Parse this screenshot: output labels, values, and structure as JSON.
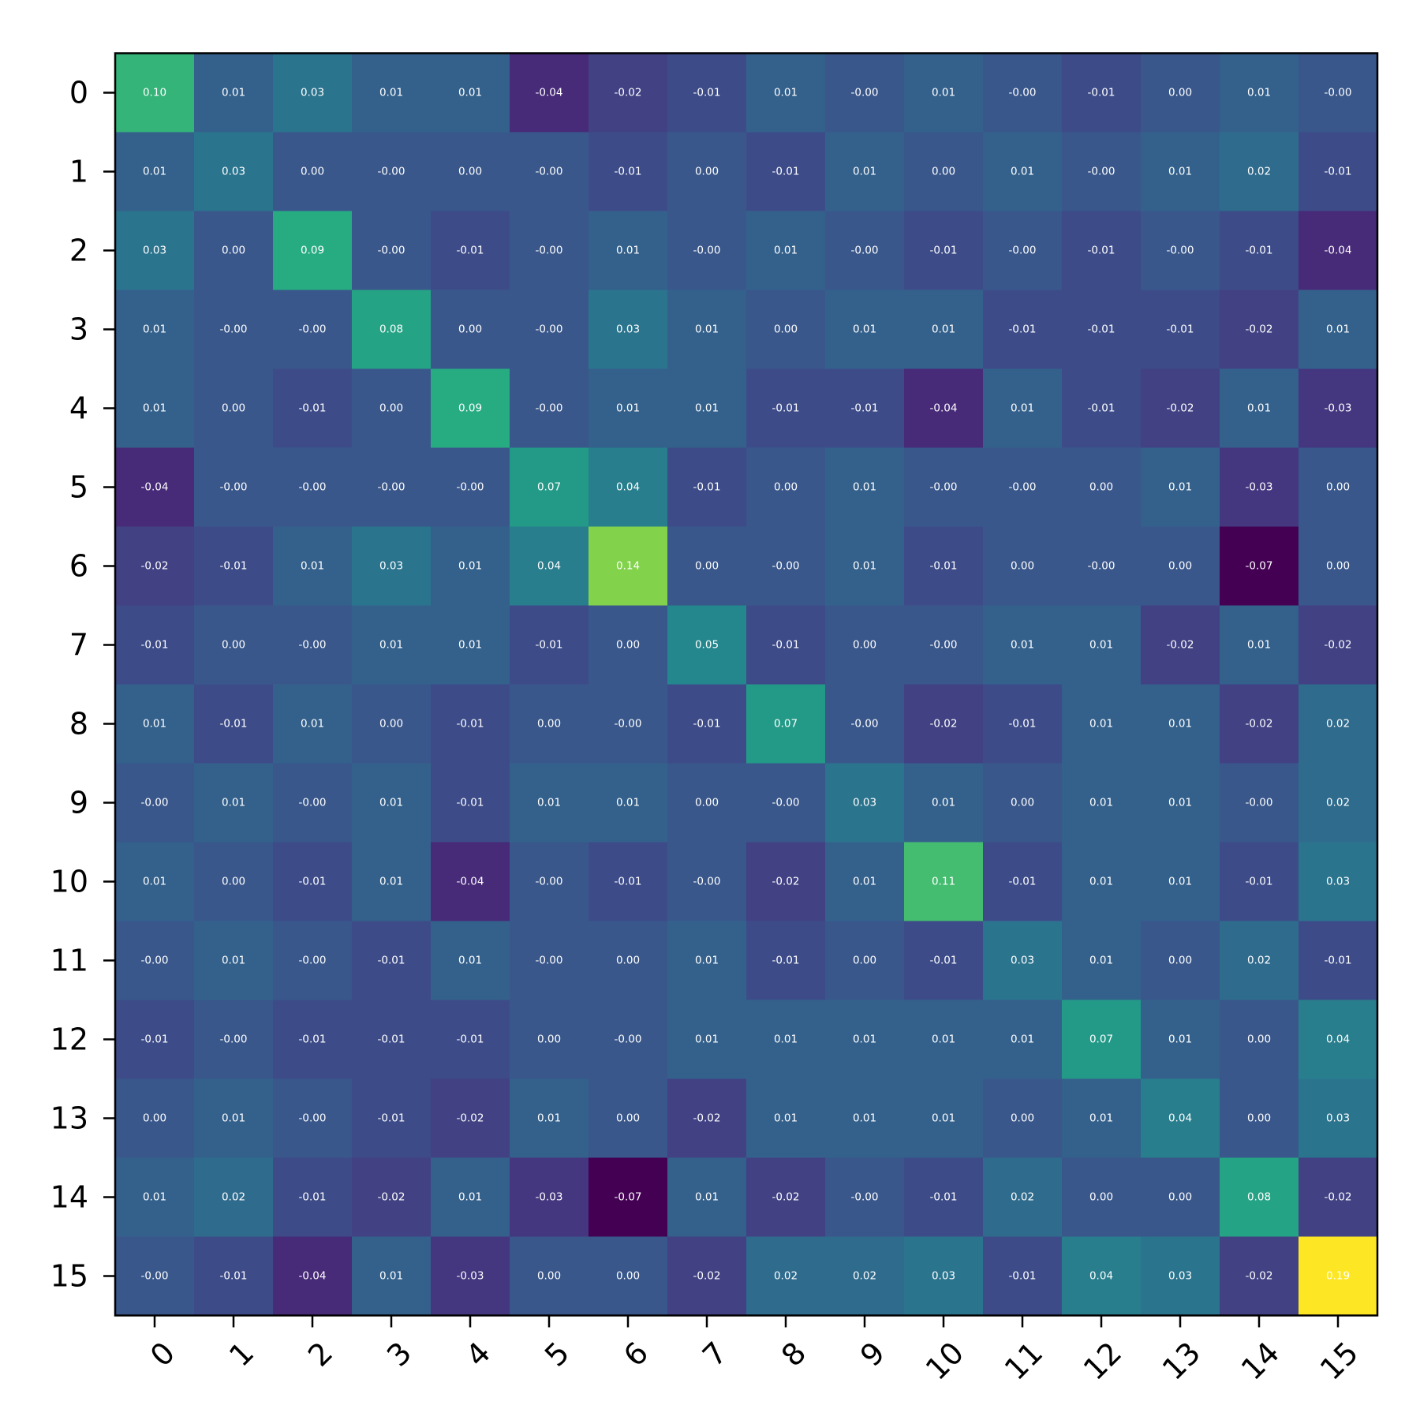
{
  "chart_data": {
    "type": "heatmap",
    "title": "",
    "xlabel": "",
    "ylabel": "",
    "colormap": "viridis",
    "vmin": -0.07,
    "vmax": 0.19,
    "grid": false,
    "value_format": "2-decimal",
    "x_categories": [
      "0",
      "1",
      "2",
      "3",
      "4",
      "5",
      "6",
      "7",
      "8",
      "9",
      "10",
      "11",
      "12",
      "13",
      "14",
      "15"
    ],
    "y_categories": [
      "0",
      "1",
      "2",
      "3",
      "4",
      "5",
      "6",
      "7",
      "8",
      "9",
      "10",
      "11",
      "12",
      "13",
      "14",
      "15"
    ],
    "values": [
      [
        0.1,
        0.01,
        0.03,
        0.01,
        0.01,
        -0.04,
        -0.02,
        -0.01,
        0.01,
        -0.0,
        0.01,
        -0.0,
        -0.01,
        0.0,
        0.01,
        -0.0
      ],
      [
        0.01,
        0.03,
        0.0,
        -0.0,
        0.0,
        -0.0,
        -0.01,
        0.0,
        -0.01,
        0.01,
        0.0,
        0.01,
        -0.0,
        0.01,
        0.02,
        -0.01
      ],
      [
        0.03,
        0.0,
        0.09,
        -0.0,
        -0.01,
        -0.0,
        0.01,
        -0.0,
        0.01,
        -0.0,
        -0.01,
        -0.0,
        -0.01,
        -0.0,
        -0.01,
        -0.04
      ],
      [
        0.01,
        -0.0,
        -0.0,
        0.08,
        0.0,
        -0.0,
        0.03,
        0.01,
        0.0,
        0.01,
        0.01,
        -0.01,
        -0.01,
        -0.01,
        -0.02,
        0.01
      ],
      [
        0.01,
        0.0,
        -0.01,
        0.0,
        0.09,
        -0.0,
        0.01,
        0.01,
        -0.01,
        -0.01,
        -0.04,
        0.01,
        -0.01,
        -0.02,
        0.01,
        -0.03
      ],
      [
        -0.04,
        -0.0,
        -0.0,
        -0.0,
        -0.0,
        0.07,
        0.04,
        -0.01,
        0.0,
        0.01,
        -0.0,
        -0.0,
        0.0,
        0.01,
        -0.03,
        0.0
      ],
      [
        -0.02,
        -0.01,
        0.01,
        0.03,
        0.01,
        0.04,
        0.14,
        0.0,
        -0.0,
        0.01,
        -0.01,
        0.0,
        -0.0,
        0.0,
        -0.07,
        0.0
      ],
      [
        -0.01,
        0.0,
        -0.0,
        0.01,
        0.01,
        -0.01,
        0.0,
        0.05,
        -0.01,
        0.0,
        -0.0,
        0.01,
        0.01,
        -0.02,
        0.01,
        -0.02
      ],
      [
        0.01,
        -0.01,
        0.01,
        0.0,
        -0.01,
        0.0,
        -0.0,
        -0.01,
        0.07,
        -0.0,
        -0.02,
        -0.01,
        0.01,
        0.01,
        -0.02,
        0.02
      ],
      [
        -0.0,
        0.01,
        -0.0,
        0.01,
        -0.01,
        0.01,
        0.01,
        0.0,
        -0.0,
        0.03,
        0.01,
        0.0,
        0.01,
        0.01,
        -0.0,
        0.02
      ],
      [
        0.01,
        0.0,
        -0.01,
        0.01,
        -0.04,
        -0.0,
        -0.01,
        -0.0,
        -0.02,
        0.01,
        0.11,
        -0.01,
        0.01,
        0.01,
        -0.01,
        0.03
      ],
      [
        -0.0,
        0.01,
        -0.0,
        -0.01,
        0.01,
        -0.0,
        0.0,
        0.01,
        -0.01,
        0.0,
        -0.01,
        0.03,
        0.01,
        0.0,
        0.02,
        -0.01
      ],
      [
        -0.01,
        -0.0,
        -0.01,
        -0.01,
        -0.01,
        0.0,
        -0.0,
        0.01,
        0.01,
        0.01,
        0.01,
        0.01,
        0.07,
        0.01,
        0.0,
        0.04
      ],
      [
        0.0,
        0.01,
        -0.0,
        -0.01,
        -0.02,
        0.01,
        0.0,
        -0.02,
        0.01,
        0.01,
        0.01,
        0.0,
        0.01,
        0.04,
        0.0,
        0.03
      ],
      [
        0.01,
        0.02,
        -0.01,
        -0.02,
        0.01,
        -0.03,
        -0.07,
        0.01,
        -0.02,
        -0.0,
        -0.01,
        0.02,
        0.0,
        0.0,
        0.08,
        -0.02
      ],
      [
        -0.0,
        -0.01,
        -0.04,
        0.01,
        -0.03,
        0.0,
        0.0,
        -0.02,
        0.02,
        0.02,
        0.03,
        -0.01,
        0.04,
        0.03,
        -0.02,
        0.19
      ]
    ],
    "value_labels": [
      [
        "0.10",
        "0.01",
        "0.03",
        "0.01",
        "0.01",
        "-0.04",
        "-0.02",
        "-0.01",
        "0.01",
        "-0.00",
        "0.01",
        "-0.00",
        "-0.01",
        "0.00",
        "0.01",
        "-0.00"
      ],
      [
        "0.01",
        "0.03",
        "0.00",
        "-0.00",
        "0.00",
        "-0.00",
        "-0.01",
        "0.00",
        "-0.01",
        "0.01",
        "0.00",
        "0.01",
        "-0.00",
        "0.01",
        "0.02",
        "-0.01"
      ],
      [
        "0.03",
        "0.00",
        "0.09",
        "-0.00",
        "-0.01",
        "-0.00",
        "0.01",
        "-0.00",
        "0.01",
        "-0.00",
        "-0.01",
        "-0.00",
        "-0.01",
        "-0.00",
        "-0.01",
        "-0.04"
      ],
      [
        "0.01",
        "-0.00",
        "-0.00",
        "0.08",
        "0.00",
        "-0.00",
        "0.03",
        "0.01",
        "0.00",
        "0.01",
        "0.01",
        "-0.01",
        "-0.01",
        "-0.01",
        "-0.02",
        "0.01"
      ],
      [
        "0.01",
        "0.00",
        "-0.01",
        "0.00",
        "0.09",
        "-0.00",
        "0.01",
        "0.01",
        "-0.01",
        "-0.01",
        "-0.04",
        "0.01",
        "-0.01",
        "-0.02",
        "0.01",
        "-0.03"
      ],
      [
        "-0.04",
        "-0.00",
        "-0.00",
        "-0.00",
        "-0.00",
        "0.07",
        "0.04",
        "-0.01",
        "0.00",
        "0.01",
        "-0.00",
        "-0.00",
        "0.00",
        "0.01",
        "-0.03",
        "0.00"
      ],
      [
        "-0.02",
        "-0.01",
        "0.01",
        "0.03",
        "0.01",
        "0.04",
        "0.14",
        "0.00",
        "-0.00",
        "0.01",
        "-0.01",
        "0.00",
        "-0.00",
        "0.00",
        "-0.07",
        "0.00"
      ],
      [
        "-0.01",
        "0.00",
        "-0.00",
        "0.01",
        "0.01",
        "-0.01",
        "0.00",
        "0.05",
        "-0.01",
        "0.00",
        "-0.00",
        "0.01",
        "0.01",
        "-0.02",
        "0.01",
        "-0.02"
      ],
      [
        "0.01",
        "-0.01",
        "0.01",
        "0.00",
        "-0.01",
        "0.00",
        "-0.00",
        "-0.01",
        "0.07",
        "-0.00",
        "-0.02",
        "-0.01",
        "0.01",
        "0.01",
        "-0.02",
        "0.02"
      ],
      [
        "-0.00",
        "0.01",
        "-0.00",
        "0.01",
        "-0.01",
        "0.01",
        "0.01",
        "0.00",
        "-0.00",
        "0.03",
        "0.01",
        "0.00",
        "0.01",
        "0.01",
        "-0.00",
        "0.02"
      ],
      [
        "0.01",
        "0.00",
        "-0.01",
        "0.01",
        "-0.04",
        "-0.00",
        "-0.01",
        "-0.00",
        "-0.02",
        "0.01",
        "0.11",
        "-0.01",
        "0.01",
        "0.01",
        "-0.01",
        "0.03"
      ],
      [
        "-0.00",
        "0.01",
        "-0.00",
        "-0.01",
        "0.01",
        "-0.00",
        "0.00",
        "0.01",
        "-0.01",
        "0.00",
        "-0.01",
        "0.03",
        "0.01",
        "0.00",
        "0.02",
        "-0.01"
      ],
      [
        "-0.01",
        "-0.00",
        "-0.01",
        "-0.01",
        "-0.01",
        "0.00",
        "-0.00",
        "0.01",
        "0.01",
        "0.01",
        "0.01",
        "0.01",
        "0.07",
        "0.01",
        "0.00",
        "0.04"
      ],
      [
        "0.00",
        "0.01",
        "-0.00",
        "-0.01",
        "-0.02",
        "0.01",
        "0.00",
        "-0.02",
        "0.01",
        "0.01",
        "0.01",
        "0.00",
        "0.01",
        "0.04",
        "0.00",
        "0.03"
      ],
      [
        "0.01",
        "0.02",
        "-0.01",
        "-0.02",
        "0.01",
        "-0.03",
        "-0.07",
        "0.01",
        "-0.02",
        "-0.00",
        "-0.01",
        "0.02",
        "0.00",
        "0.00",
        "0.08",
        "-0.02"
      ],
      [
        "-0.00",
        "-0.01",
        "-0.04",
        "0.01",
        "-0.03",
        "0.00",
        "0.00",
        "-0.02",
        "0.02",
        "0.02",
        "0.03",
        "-0.01",
        "0.04",
        "0.03",
        "-0.02",
        "0.19"
      ]
    ]
  }
}
